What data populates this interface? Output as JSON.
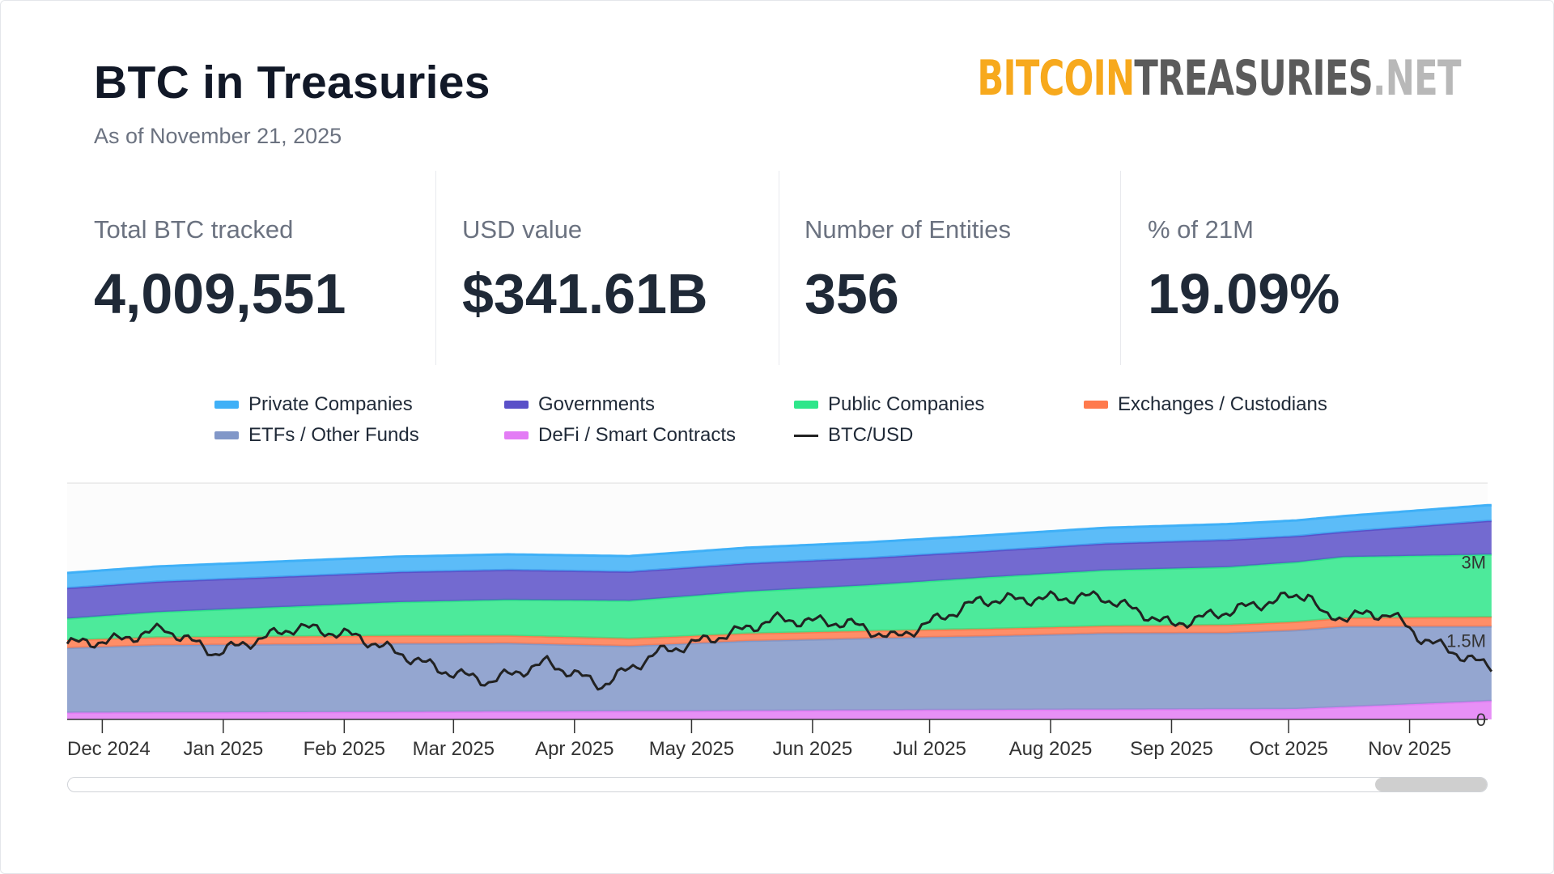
{
  "header": {
    "title": "BTC in Treasuries",
    "subtitle": "As of November 21, 2025",
    "logo": {
      "part1": "BITCOIN",
      "part2": "TREASURIES",
      "part3": ".NET"
    }
  },
  "stats": [
    {
      "label": "Total BTC tracked",
      "value": "4,009,551"
    },
    {
      "label": "USD value",
      "value": "$341.61B"
    },
    {
      "label": "Number of Entities",
      "value": "356"
    },
    {
      "label": "% of 21M",
      "value": "19.09%"
    }
  ],
  "legend": [
    {
      "label": "Private Companies",
      "color": "#3fb0f7",
      "icon": "area-swatch"
    },
    {
      "label": "Governments",
      "color": "#5a50c8",
      "icon": "area-swatch"
    },
    {
      "label": "Public Companies",
      "color": "#2ee68a",
      "icon": "area-swatch"
    },
    {
      "label": "Exchanges / Custodians",
      "color": "#ff7a4d",
      "icon": "area-swatch"
    },
    {
      "label": "ETFs / Other Funds",
      "color": "#8197c8",
      "icon": "area-swatch"
    },
    {
      "label": "DeFi / Smart Contracts",
      "color": "#e37cf5",
      "icon": "area-swatch"
    },
    {
      "label": "BTC/USD",
      "color": "#222222",
      "icon": "line-swatch"
    }
  ],
  "chart_data": {
    "type": "area",
    "stacked": true,
    "x_labels": [
      "Dec 2024",
      "Jan 2025",
      "Feb 2025",
      "Mar 2025",
      "Apr 2025",
      "May 2025",
      "Jun 2025",
      "Jul 2025",
      "Aug 2025",
      "Sep 2025",
      "Oct 2025",
      "Nov 2025"
    ],
    "y_ticks": [
      "0",
      "1.5M",
      "3M"
    ],
    "ylim": [
      0,
      4500000
    ],
    "grid": false,
    "legend_position": "top",
    "series": [
      {
        "name": "DeFi / Smart Contracts",
        "color": "#e37cf5",
        "x": [
          "2024-11-22",
          "2025-01-26",
          "2025-05-01",
          "2025-07-01",
          "2025-10-03",
          "2025-11-21"
        ],
        "values": [
          130000,
          140000,
          160000,
          180000,
          200000,
          350000
        ]
      },
      {
        "name": "ETFs / Other Funds",
        "color": "#8197c8",
        "x": [
          "2024-11-22",
          "2024-12-15",
          "2025-01-15",
          "2025-02-15",
          "2025-03-15",
          "2025-04-15",
          "2025-05-15",
          "2025-06-15",
          "2025-07-15",
          "2025-08-15",
          "2025-09-15",
          "2025-10-15",
          "2025-11-21"
        ],
        "values": [
          1230000,
          1280000,
          1290000,
          1300000,
          1300000,
          1240000,
          1330000,
          1370000,
          1400000,
          1450000,
          1450000,
          1530000,
          1420000
        ]
      },
      {
        "name": "Exchanges / Custodians",
        "color": "#ff7a4d",
        "x": [
          "2024-11-22",
          "2025-02-15",
          "2025-05-15",
          "2025-08-15",
          "2025-11-21"
        ],
        "values": [
          150000,
          150000,
          140000,
          140000,
          180000
        ]
      },
      {
        "name": "Public Companies",
        "color": "#2ee68a",
        "x": [
          "2024-11-22",
          "2024-12-15",
          "2025-01-15",
          "2025-02-15",
          "2025-03-15",
          "2025-04-15",
          "2025-05-15",
          "2025-06-15",
          "2025-07-15",
          "2025-08-15",
          "2025-09-15",
          "2025-10-15",
          "2025-11-21"
        ],
        "values": [
          410000,
          480000,
          560000,
          640000,
          680000,
          720000,
          800000,
          870000,
          980000,
          1060000,
          1100000,
          1160000,
          1190000
        ]
      },
      {
        "name": "Governments",
        "color": "#5a50c8",
        "x": [
          "2024-11-22",
          "2025-03-15",
          "2025-07-15",
          "2025-09-15",
          "2025-10-15",
          "2025-11-21"
        ],
        "values": [
          580000,
          570000,
          500000,
          520000,
          480000,
          640000
        ]
      },
      {
        "name": "Private Companies",
        "color": "#3fb0f7",
        "x": [
          "2024-11-22",
          "2025-05-15",
          "2025-11-21"
        ],
        "values": [
          290000,
          300000,
          300000
        ]
      },
      {
        "name": "BTC/USD",
        "color": "#222222",
        "type": "line",
        "x": [
          "2024-11-22",
          "2024-12-05",
          "2024-12-17",
          "2024-12-30",
          "2025-01-20",
          "2025-02-04",
          "2025-02-26",
          "2025-03-10",
          "2025-03-25",
          "2025-04-08",
          "2025-04-22",
          "2025-05-12",
          "2025-05-22",
          "2025-06-10",
          "2025-06-22",
          "2025-07-14",
          "2025-08-14",
          "2025-09-01",
          "2025-09-15",
          "2025-10-06",
          "2025-10-10",
          "2025-10-27",
          "2025-11-04",
          "2025-11-21"
        ],
        "values": [
          98000,
          100000,
          106000,
          93000,
          107000,
          102000,
          84000,
          78000,
          88000,
          76000,
          93000,
          104000,
          111000,
          109000,
          101000,
          121000,
          123000,
          108000,
          115000,
          125000,
          112000,
          114000,
          101000,
          86000
        ]
      }
    ]
  }
}
